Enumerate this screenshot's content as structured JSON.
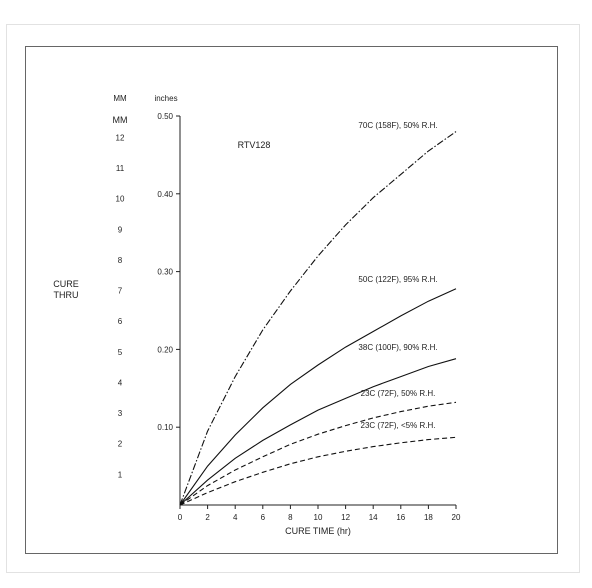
{
  "chart_data": {
    "type": "line",
    "annotation": "RTV128",
    "xlabel": "CURE TIME (hr)",
    "x_ticks": [
      0,
      2,
      4,
      6,
      8,
      10,
      12,
      14,
      16,
      18,
      20
    ],
    "xlim": [
      0,
      20
    ],
    "y_unit_left": "inches",
    "y_ticks": [
      0.1,
      0.2,
      0.3,
      0.4,
      0.5
    ],
    "y_tick_labels": [
      "0.10",
      "0.20",
      "0.30",
      "0.40",
      "0.50"
    ],
    "ylim": [
      0,
      0.5
    ],
    "mm_header_1": "MM",
    "mm_header_2": "MM",
    "mm_ticks": [
      "1",
      "2",
      "3",
      "4",
      "5",
      "6",
      "7",
      "8",
      "9",
      "10",
      "11",
      "12"
    ],
    "side_label_1": "CURE",
    "side_label_2": "THRU",
    "series": [
      {
        "name": "70C (158F), 50% R.H.",
        "style": "dash-dot",
        "x": [
          0,
          2,
          4,
          6,
          8,
          10,
          12,
          14,
          16,
          18,
          20
        ],
        "y": [
          0,
          0.095,
          0.165,
          0.225,
          0.275,
          0.32,
          0.36,
          0.395,
          0.425,
          0.455,
          0.48
        ]
      },
      {
        "name": "50C (122F), 95% R.H.",
        "style": "solid",
        "x": [
          0,
          2,
          4,
          6,
          8,
          10,
          12,
          14,
          16,
          18,
          20
        ],
        "y": [
          0,
          0.05,
          0.09,
          0.125,
          0.155,
          0.18,
          0.203,
          0.223,
          0.243,
          0.262,
          0.278
        ]
      },
      {
        "name": "38C (100F), 90% R.H.",
        "style": "solid",
        "x": [
          0,
          2,
          4,
          6,
          8,
          10,
          12,
          14,
          16,
          18,
          20
        ],
        "y": [
          0,
          0.032,
          0.06,
          0.083,
          0.103,
          0.122,
          0.137,
          0.152,
          0.165,
          0.178,
          0.188
        ]
      },
      {
        "name": "23C (72F), 50% R.H.",
        "style": "dashed",
        "x": [
          0,
          2,
          4,
          6,
          8,
          10,
          12,
          14,
          16,
          18,
          20
        ],
        "y": [
          0,
          0.025,
          0.045,
          0.062,
          0.078,
          0.091,
          0.102,
          0.112,
          0.12,
          0.127,
          0.132
        ]
      },
      {
        "name": "23C (72F), <5% R.H.",
        "style": "dashed",
        "x": [
          0,
          2,
          4,
          6,
          8,
          10,
          12,
          14,
          16,
          18,
          20
        ],
        "y": [
          0,
          0.016,
          0.03,
          0.042,
          0.053,
          0.062,
          0.069,
          0.075,
          0.08,
          0.084,
          0.087
        ]
      }
    ]
  }
}
